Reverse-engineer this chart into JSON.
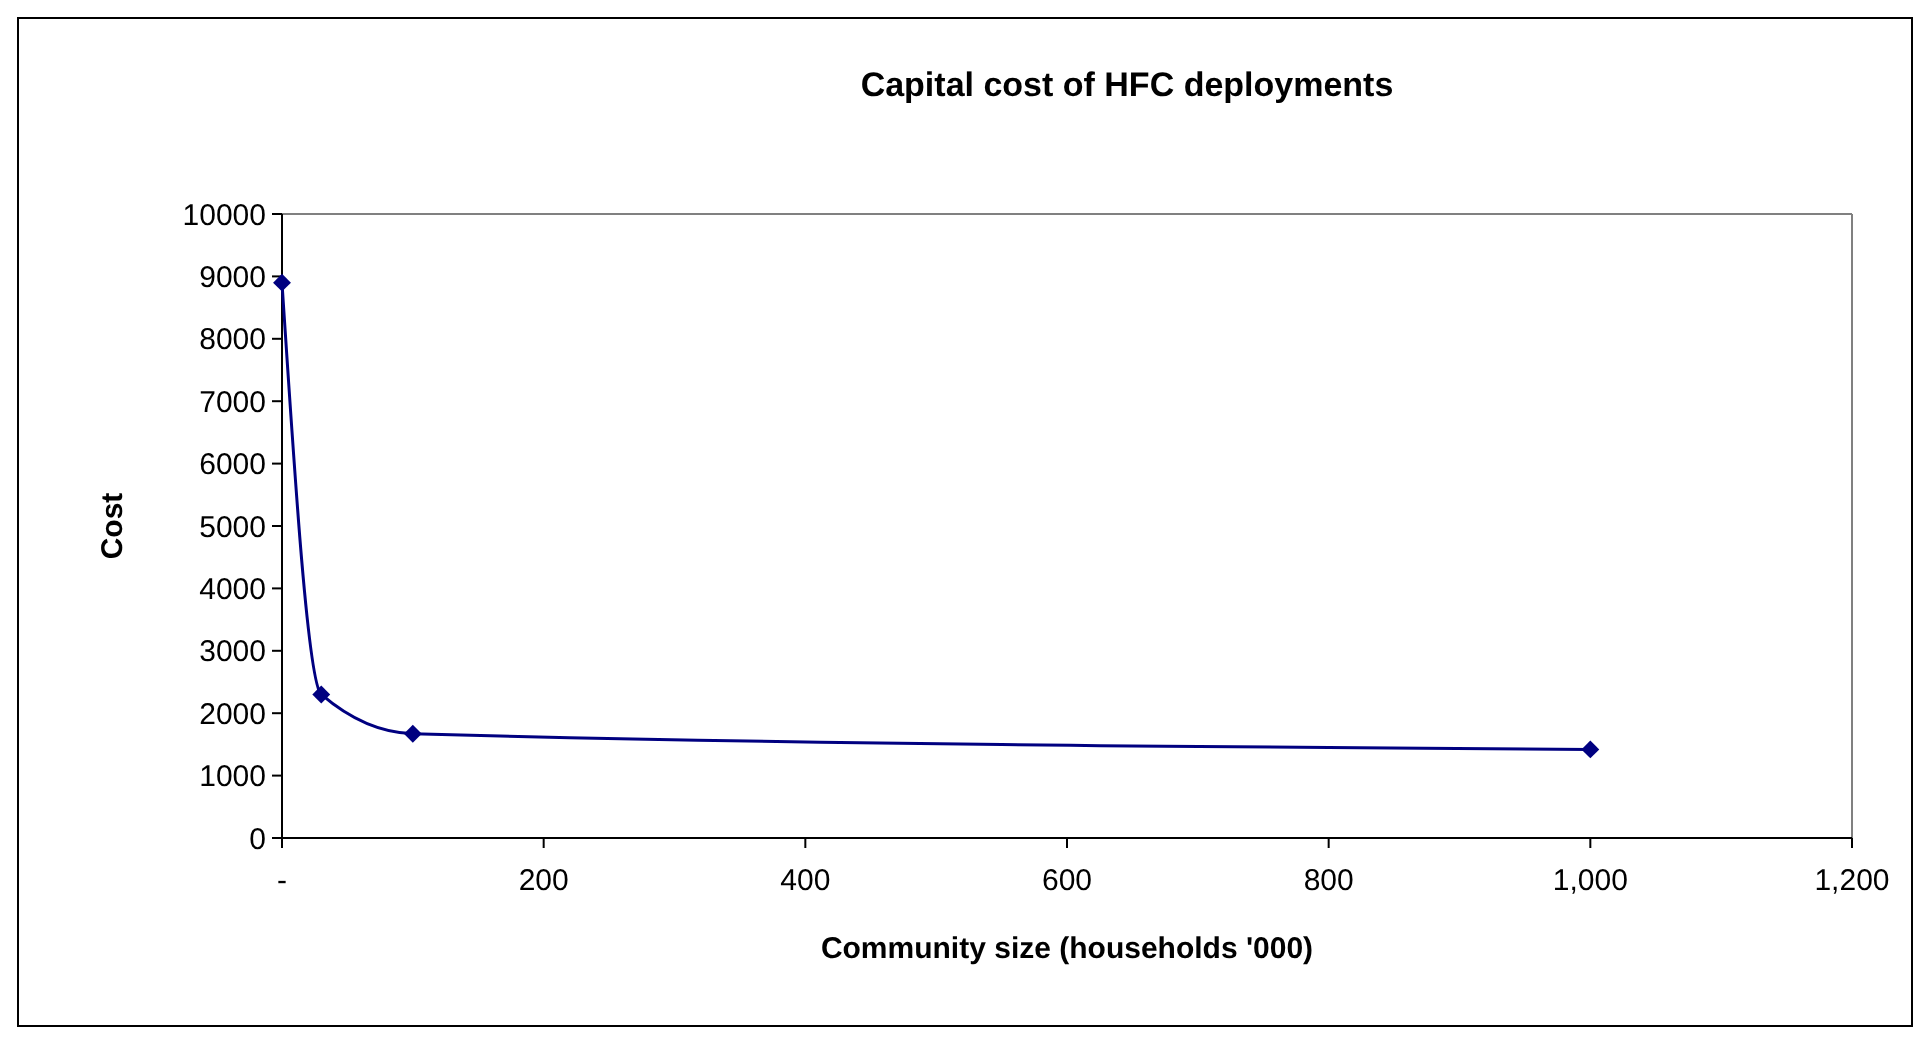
{
  "chart_data": {
    "type": "line",
    "title": "Capital cost of HFC deployments",
    "xlabel": "Community size (households '000)",
    "ylabel": "Cost",
    "x": [
      0,
      30,
      100,
      1000
    ],
    "series": [
      {
        "color": "#000080",
        "values": [
          8900,
          2300,
          1670,
          1420
        ]
      }
    ],
    "xlim": [
      0,
      1200
    ],
    "xticks": [
      {
        "value": 0,
        "label": "-"
      },
      200,
      400,
      600,
      800,
      {
        "value": 1000,
        "label": "1,000"
      },
      {
        "value": 1200,
        "label": "1,200"
      }
    ],
    "ylim": [
      0,
      10000
    ],
    "yticks": [
      0,
      1000,
      2000,
      3000,
      4000,
      5000,
      6000,
      7000,
      8000,
      9000,
      10000
    ],
    "marker": "diamond",
    "line_style": "solid",
    "grid": false
  }
}
